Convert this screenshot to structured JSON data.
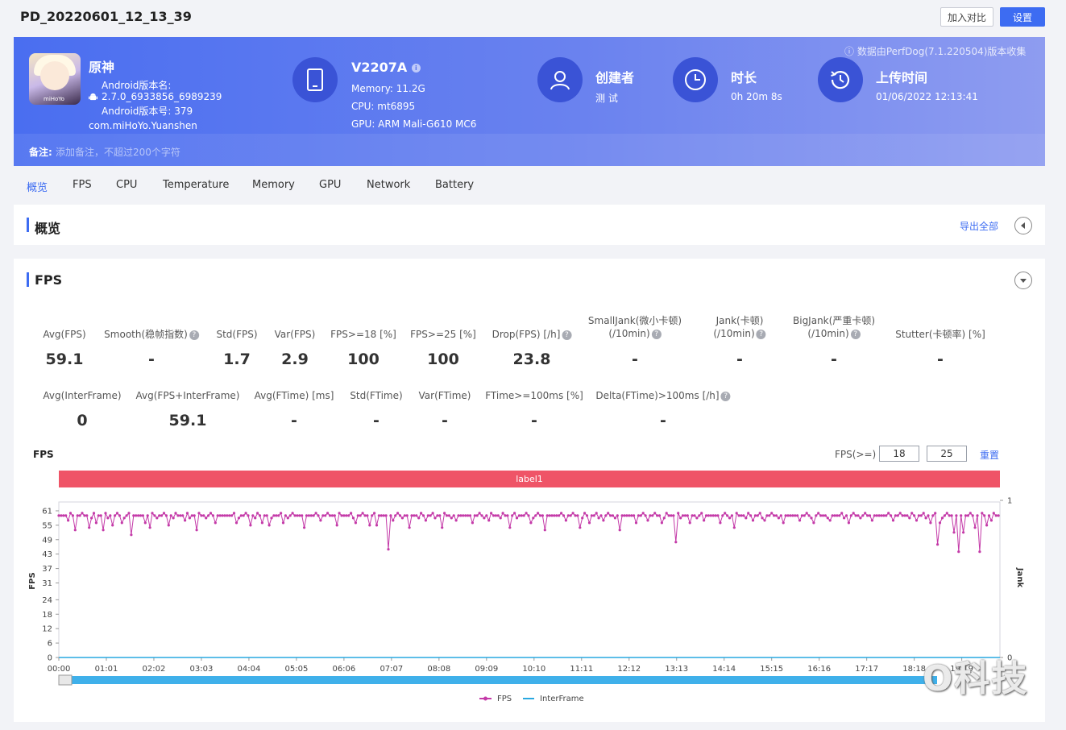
{
  "header": {
    "title": "PD_20220601_12_13_39",
    "compare_button": "加入对比",
    "settings_button": "设置"
  },
  "banner": {
    "collect_info": "ⓘ 数据由PerfDog(7.1.220504)版本收集",
    "app": {
      "name": "原神",
      "icon_tag": "miHoYo",
      "version_name_label": "Android版本名:",
      "version_name": "2.7.0_6933856_6989239",
      "version_code": "Android版本号: 379",
      "package": "com.miHoYo.Yuanshen"
    },
    "device": {
      "model": "V2207A",
      "memory": "Memory: 11.2G",
      "cpu": "CPU: mt6895",
      "gpu": "GPU: ARM Mali-G610 MC6"
    },
    "creator": {
      "title": "创建者",
      "value": "测 试"
    },
    "duration": {
      "title": "时长",
      "value": "0h 20m 8s"
    },
    "upload": {
      "title": "上传时间",
      "value": "01/06/2022 12:13:41"
    },
    "note_label": "备注:",
    "note_placeholder": "添加备注，不超过200个字符"
  },
  "tabs": [
    "概览",
    "FPS",
    "CPU",
    "Temperature",
    "Memory",
    "GPU",
    "Network",
    "Battery"
  ],
  "overview": {
    "title": "概览",
    "export": "导出全部"
  },
  "fps_section": {
    "title": "FPS",
    "row1": [
      {
        "label": "Avg(FPS)",
        "value": "59.1",
        "help": false
      },
      {
        "label": "Smooth(稳帧指数)",
        "value": "-",
        "help": true
      },
      {
        "label": "Std(FPS)",
        "value": "1.7",
        "help": false
      },
      {
        "label": "Var(FPS)",
        "value": "2.9",
        "help": false
      },
      {
        "label": "FPS>=18 [%]",
        "value": "100",
        "help": false
      },
      {
        "label": "FPS>=25 [%]",
        "value": "100",
        "help": false
      },
      {
        "label": "Drop(FPS) [/h]",
        "value": "23.8",
        "help": true
      },
      {
        "label": "SmallJank(微小卡顿)",
        "label2": "(/10min)",
        "value": "-",
        "help": true
      },
      {
        "label": "Jank(卡顿)",
        "label2": "(/10min)",
        "value": "-",
        "help": true
      },
      {
        "label": "BigJank(严重卡顿)",
        "label2": "(/10min)",
        "value": "-",
        "help": true
      },
      {
        "label": "Stutter(卡顿率) [%]",
        "value": "-",
        "help": false
      }
    ],
    "row2": [
      {
        "label": "Avg(InterFrame)",
        "value": "0",
        "help": false
      },
      {
        "label": "Avg(FPS+InterFrame)",
        "value": "59.1",
        "help": false
      },
      {
        "label": "Avg(FTime) [ms]",
        "value": "-",
        "help": false
      },
      {
        "label": "Std(FTime)",
        "value": "-",
        "help": false
      },
      {
        "label": "Var(FTime)",
        "value": "-",
        "help": false
      },
      {
        "label": "FTime>=100ms [%]",
        "value": "-",
        "help": false
      },
      {
        "label": "Delta(FTime)>100ms [/h]",
        "value": "-",
        "help": true
      }
    ],
    "chart_title": "FPS",
    "threshold_label": "FPS(>=)",
    "threshold_1": "18",
    "threshold_2": "25",
    "reset": "重置",
    "label_strip": "label1"
  },
  "colors": {
    "accent": "#3d6cf2",
    "fps_series": "#c43aa8",
    "interframe_series": "#29a8e0",
    "label_strip": "#ef5467"
  },
  "watermark": "O科技",
  "chart_data": {
    "type": "line",
    "title": "",
    "ylabel": "FPS",
    "y2label": "Jank",
    "ylim": [
      0,
      64
    ],
    "y_ticks": [
      0,
      6,
      12,
      18,
      24,
      31,
      37,
      43,
      49,
      55,
      61
    ],
    "y2_ticks": [
      0,
      1
    ],
    "x_tick_labels": [
      "00:00",
      "01:01",
      "02:02",
      "03:03",
      "04:04",
      "05:05",
      "06:06",
      "07:07",
      "08:08",
      "09:09",
      "10:10",
      "11:11",
      "12:12",
      "13:13",
      "14:14",
      "15:15",
      "16:16",
      "17:17",
      "18:18",
      "19:19"
    ],
    "x_unit": "seconds",
    "x_range": [
      0,
      1208
    ],
    "legend": [
      "FPS",
      "InterFrame"
    ],
    "legend_position": "bottom",
    "series": [
      {
        "name": "FPS",
        "baseline": 59,
        "dips": [
          [
            12,
            57
          ],
          [
            20,
            53
          ],
          [
            38,
            54
          ],
          [
            48,
            56
          ],
          [
            58,
            53
          ],
          [
            70,
            55
          ],
          [
            80,
            56
          ],
          [
            92,
            51
          ],
          [
            110,
            56
          ],
          [
            118,
            54
          ],
          [
            140,
            55
          ],
          [
            162,
            57
          ],
          [
            178,
            53
          ],
          [
            200,
            56
          ],
          [
            228,
            56
          ],
          [
            245,
            55
          ],
          [
            262,
            56
          ],
          [
            270,
            55
          ],
          [
            288,
            56
          ],
          [
            315,
            54
          ],
          [
            335,
            57
          ],
          [
            356,
            55
          ],
          [
            382,
            56
          ],
          [
            398,
            55
          ],
          [
            408,
            55
          ],
          [
            424,
            45
          ],
          [
            430,
            57
          ],
          [
            450,
            54
          ],
          [
            470,
            57
          ],
          [
            492,
            54
          ],
          [
            510,
            57
          ],
          [
            530,
            56
          ],
          [
            552,
            57
          ],
          [
            578,
            54
          ],
          [
            605,
            56
          ],
          [
            625,
            53
          ],
          [
            650,
            57
          ],
          [
            668,
            54
          ],
          [
            682,
            56
          ],
          [
            700,
            57
          ],
          [
            720,
            53
          ],
          [
            742,
            56
          ],
          [
            755,
            57
          ],
          [
            775,
            56
          ],
          [
            792,
            48
          ],
          [
            810,
            56
          ],
          [
            828,
            57
          ],
          [
            850,
            56
          ],
          [
            868,
            54
          ],
          [
            890,
            57
          ],
          [
            905,
            57
          ],
          [
            930,
            56
          ],
          [
            950,
            57
          ],
          [
            970,
            56
          ],
          [
            990,
            57
          ],
          [
            1014,
            56
          ],
          [
            1045,
            57
          ],
          [
            1070,
            57
          ],
          [
            1100,
            57
          ],
          [
            1118,
            56
          ],
          [
            1127,
            47
          ],
          [
            1132,
            56
          ],
          [
            1150,
            52
          ],
          [
            1155,
            44
          ],
          [
            1162,
            52
          ],
          [
            1176,
            54
          ],
          [
            1182,
            44
          ],
          [
            1192,
            55
          ],
          [
            1196,
            57
          ]
        ]
      },
      {
        "name": "InterFrame",
        "constant": 0
      }
    ]
  }
}
